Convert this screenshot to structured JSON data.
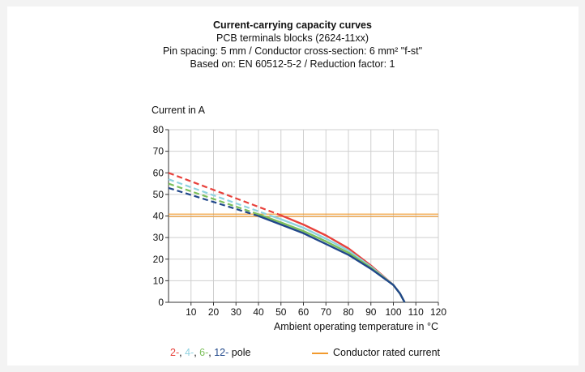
{
  "chart_data": {
    "type": "line",
    "title": "Current-carrying capacity curves",
    "subtitle": [
      "PCB terminals blocks (2624-11xx)",
      "Pin spacing: 5 mm / Conductor cross-section: 6 mm² \"f-st\"",
      "Based on: EN 60512-5-2 / Reduction factor: 1"
    ],
    "ylabel": "Current in A",
    "xlabel": "Ambient operating temperature in °C",
    "xlim": [
      0,
      120
    ],
    "ylim": [
      0,
      80
    ],
    "xticks": [
      10,
      20,
      30,
      40,
      50,
      60,
      70,
      80,
      90,
      100,
      110,
      120
    ],
    "yticks": [
      0,
      10,
      20,
      30,
      40,
      50,
      60,
      70,
      80
    ],
    "grid": true,
    "series": [
      {
        "name": "2-",
        "color": "#e8413b",
        "dashed": [
          [
            0,
            60
          ],
          [
            50,
            40.3
          ]
        ],
        "solid": [
          [
            50,
            40.3
          ],
          [
            60,
            36.0
          ],
          [
            70,
            31.0
          ],
          [
            80,
            25.0
          ],
          [
            90,
            17.0
          ],
          [
            100,
            8.0
          ],
          [
            103,
            4.0
          ],
          [
            105,
            0
          ]
        ]
      },
      {
        "name": "4-",
        "color": "#8fd2e0",
        "dashed": [
          [
            0,
            57
          ],
          [
            45,
            40.3
          ]
        ],
        "solid": [
          [
            45,
            40.3
          ],
          [
            50,
            38.5
          ],
          [
            60,
            34.5
          ],
          [
            70,
            29.5
          ],
          [
            80,
            24.0
          ],
          [
            90,
            16.5
          ],
          [
            100,
            8.0
          ],
          [
            103,
            4.0
          ],
          [
            105,
            0
          ]
        ]
      },
      {
        "name": "6-",
        "color": "#7cbf5a",
        "dashed": [
          [
            0,
            55
          ],
          [
            40,
            40.8
          ]
        ],
        "solid": [
          [
            40,
            40.8
          ],
          [
            50,
            37.0
          ],
          [
            60,
            33.0
          ],
          [
            70,
            28.2
          ],
          [
            80,
            23.0
          ],
          [
            90,
            16.0
          ],
          [
            100,
            8.0
          ],
          [
            103,
            4.0
          ],
          [
            105,
            0
          ]
        ]
      },
      {
        "name": "12-",
        "color": "#20478a",
        "dashed": [
          [
            0,
            53
          ],
          [
            40,
            40.0
          ]
        ],
        "solid": [
          [
            40,
            40.0
          ],
          [
            50,
            36.0
          ],
          [
            60,
            32.0
          ],
          [
            70,
            27.0
          ],
          [
            80,
            22.0
          ],
          [
            90,
            15.5
          ],
          [
            100,
            8.0
          ],
          [
            103,
            4.0
          ],
          [
            105,
            0
          ]
        ]
      }
    ],
    "rated_current": {
      "name": "Conductor rated current",
      "value": 40.3,
      "color": "#f29a2e"
    },
    "legend": {
      "pole_labels": [
        "2-",
        "4-",
        "6-",
        "12-"
      ],
      "pole_suffix": "pole",
      "rated_label": "Conductor rated current"
    }
  }
}
